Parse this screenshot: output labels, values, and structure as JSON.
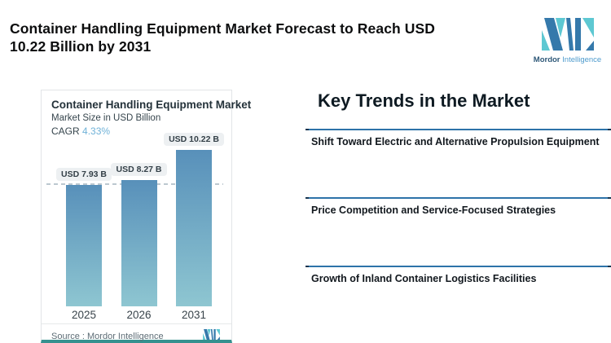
{
  "page": {
    "title_line1": "Container Handling Equipment Market Forecast to Reach USD",
    "title_line2": "10.22 Billion by 2031"
  },
  "brand": {
    "name_primary": "Mordor",
    "name_secondary": "Intelligence",
    "logo_blue": "#3579ab",
    "logo_teal": "#5ec8d2"
  },
  "chart_card": {
    "title": "Container Handling Equipment Market",
    "subtitle": "Market Size in USD Billion",
    "cagr_label": "CAGR",
    "cagr_value": "4.33%",
    "source_text": "Source :  Mordor Intelligence"
  },
  "chart_data": {
    "type": "bar",
    "title": "Container Handling Equipment Market",
    "subtitle": "Market Size in USD Billion",
    "cagr": "4.33%",
    "categories": [
      "2025",
      "2026",
      "2031"
    ],
    "values": [
      7.93,
      8.27,
      10.22
    ],
    "value_labels": [
      "USD 7.93 B",
      "USD 8.27 B",
      "USD 10.22 B"
    ],
    "ylim": [
      0,
      10.22
    ],
    "reference_line_value": 7.93,
    "grid": "off",
    "bar_gradient_top": "#5890ba",
    "bar_gradient_bottom": "#8ec6d1",
    "reference_line_color": "#bcc8d0"
  },
  "key_trends": {
    "heading": "Key Trends in the Market",
    "divider_color": "#2d73a9",
    "items": [
      "Shift Toward Electric and Alternative Propulsion Equipment",
      "Price Competition and Service-Focused Strategies",
      "Growth of Inland Container Logistics Facilities"
    ]
  }
}
